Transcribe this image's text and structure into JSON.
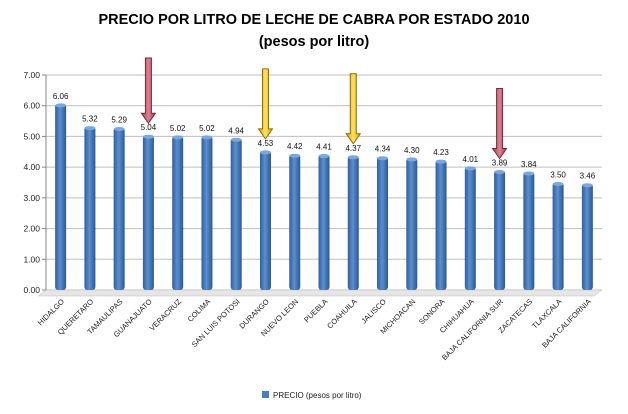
{
  "chart_data": {
    "type": "bar",
    "title": "PRECIO POR LITRO DE LECHE DE CABRA POR ESTADO 2010",
    "subtitle": "(pesos por litro)",
    "categories": [
      "HIDALGO",
      "QUERETARO",
      "TAMAULIPAS",
      "GUANAJUATO",
      "VERACRUZ",
      "COLIMA",
      "SAN LUIS POTOSI",
      "DURANGO",
      "NUEVO LEON",
      "PUEBLA",
      "COAHUILA",
      "JALISCO",
      "MICHOACAN",
      "SONORA",
      "CHIHUAHUA",
      "BAJA CALIFORNIA SUR",
      "ZACATECAS",
      "TLAXCALA",
      "BAJA CALIFORNIA"
    ],
    "series": [
      {
        "name": "PRECIO (pesos por litro)",
        "values": [
          6.06,
          5.32,
          5.29,
          5.04,
          5.02,
          5.02,
          4.94,
          4.53,
          4.42,
          4.41,
          4.37,
          4.34,
          4.3,
          4.23,
          4.01,
          3.89,
          3.84,
          3.5,
          3.46
        ],
        "labels": [
          "6.06",
          "5.32",
          "5.29",
          "5.04",
          "5.02",
          "5.02",
          "4.94",
          "4.53",
          "4.42",
          "4.41",
          "4.37",
          "4.34",
          "4.30",
          "4.23",
          "4.01",
          "3.89",
          "3.84",
          "3.50",
          "3.46"
        ],
        "color": "#4a7ebb"
      }
    ],
    "ylim": [
      0,
      7
    ],
    "yticks": [
      "0.00",
      "1.00",
      "2.00",
      "3.00",
      "4.00",
      "5.00",
      "6.00",
      "7.00"
    ],
    "grid": true,
    "legend": "bottom",
    "annotations": [
      {
        "type": "arrow-down",
        "category": "GUANAJUATO",
        "color": "#c0504d"
      },
      {
        "type": "arrow-down",
        "category": "DURANGO",
        "color": "#f0c000"
      },
      {
        "type": "arrow-down",
        "category": "COAHUILA",
        "color": "#f0c000"
      },
      {
        "type": "arrow-down",
        "category": "BAJA CALIFORNIA SUR",
        "color": "#c0504d"
      }
    ]
  }
}
